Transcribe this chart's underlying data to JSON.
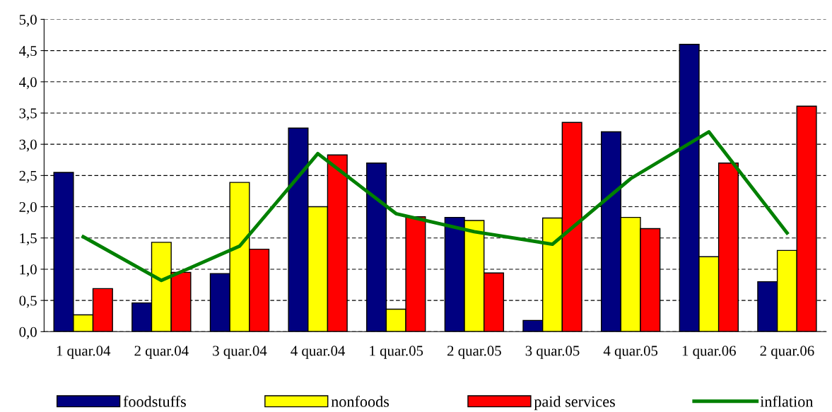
{
  "chart_data": {
    "type": "bar",
    "categories": [
      "1 quar.04",
      "2 quar.04",
      "3 quar.04",
      "4 quar.04",
      "1 quar.05",
      "2 quar.05",
      "3 quar.05",
      "4 quar.05",
      "1 quar.06",
      "2 quar.06"
    ],
    "series": [
      {
        "name": "foodstuffs",
        "color": "#000080",
        "values": [
          2.55,
          0.46,
          0.93,
          3.26,
          2.7,
          1.83,
          0.18,
          3.2,
          4.6,
          0.8
        ]
      },
      {
        "name": "nonfoods",
        "color": "#ffff00",
        "values": [
          0.27,
          1.43,
          2.39,
          2.0,
          0.36,
          1.78,
          1.82,
          1.83,
          1.2,
          1.3
        ]
      },
      {
        "name": "paid services",
        "color": "#ff0000",
        "values": [
          0.69,
          0.95,
          1.32,
          2.83,
          1.84,
          0.94,
          3.35,
          1.65,
          2.7,
          3.61
        ]
      },
      {
        "name": "inflation",
        "color": "#008000",
        "type": "line",
        "values": [
          1.52,
          0.82,
          1.37,
          2.85,
          1.89,
          1.6,
          1.4,
          2.45,
          3.2,
          1.58
        ]
      }
    ],
    "ylim": [
      0,
      5
    ],
    "yticks": [
      {
        "value": 0,
        "label": "0,0"
      },
      {
        "value": 0.5,
        "label": "0,5"
      },
      {
        "value": 1,
        "label": "1,0"
      },
      {
        "value": 1.5,
        "label": "1,5"
      },
      {
        "value": 2,
        "label": "2,0"
      },
      {
        "value": 2.5,
        "label": "2,5"
      },
      {
        "value": 3,
        "label": "3,0"
      },
      {
        "value": 3.5,
        "label": "3,5"
      },
      {
        "value": 4,
        "label": "4,0"
      },
      {
        "value": 4.5,
        "label": "4,5"
      },
      {
        "value": 5,
        "label": "5,0"
      }
    ],
    "grid": "y",
    "legend": "bottom",
    "line_style": "solid",
    "marker": "none"
  }
}
